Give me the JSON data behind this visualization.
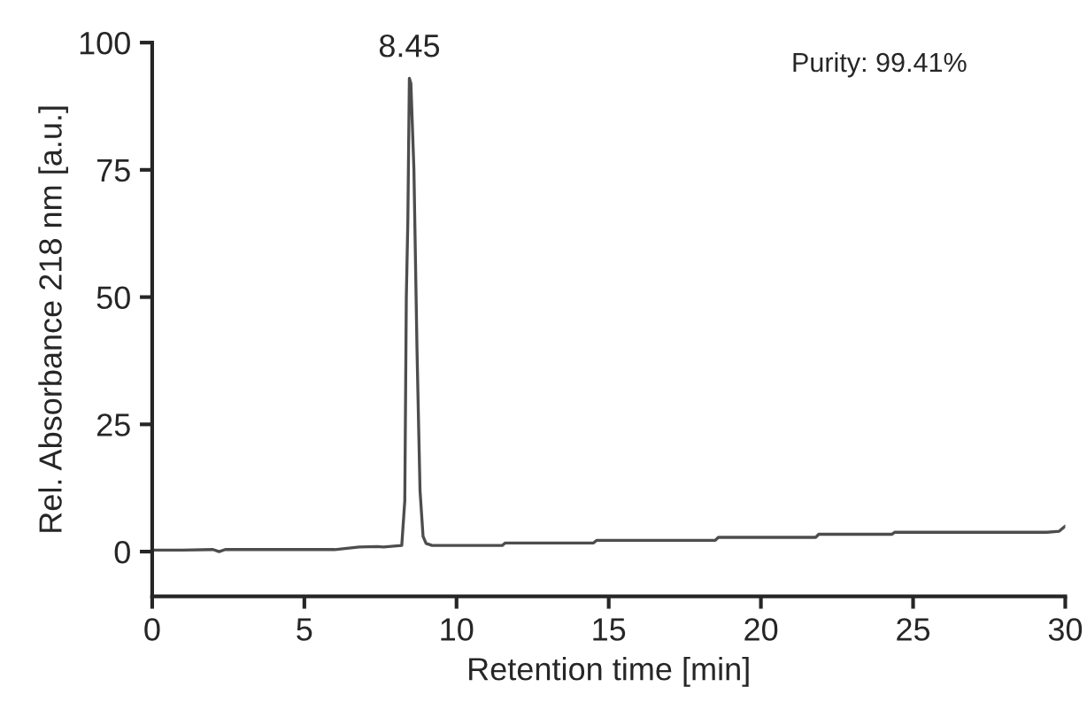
{
  "chart_data": {
    "type": "line",
    "xlabel": "Retention time [min]",
    "ylabel": "Rel. Absorbance 218 nm [a.u.]",
    "series": [
      {
        "color": "#4d4d4d",
        "x": [
          0,
          1,
          2,
          2.2,
          2.4,
          4,
          6,
          6.8,
          7.4,
          7.6,
          8.2,
          8.3,
          8.35,
          8.4,
          8.45,
          8.5,
          8.6,
          8.7,
          8.8,
          8.9,
          9.0,
          9.2,
          9.5,
          11.5,
          11.6,
          14.5,
          14.6,
          18.5,
          18.6,
          21.8,
          21.9,
          24.3,
          24.4,
          29.4,
          29.8,
          30
        ],
        "values": [
          0.3,
          0.3,
          0.4,
          0,
          0.4,
          0.4,
          0.4,
          0.9,
          1.0,
          0.9,
          1.2,
          10,
          50,
          65,
          93,
          92,
          75,
          40,
          12,
          3,
          1.6,
          1.2,
          1.2,
          1.2,
          1.7,
          1.7,
          2.2,
          2.2,
          2.8,
          2.8,
          3.4,
          3.4,
          3.8,
          3.8,
          4.0,
          5.0
        ]
      }
    ],
    "xlim": [
      0,
      30
    ],
    "ylim": [
      -8.8,
      100
    ],
    "xticks": [
      0,
      5,
      10,
      15,
      20,
      25,
      30
    ],
    "yticks": [
      0,
      25,
      50,
      75,
      100
    ],
    "grid": false,
    "line_style": "solid",
    "marker": "none",
    "annotations": [
      {
        "text": "8.45",
        "x": 8.45,
        "y": 93
      },
      "Purity: 99.41%"
    ]
  }
}
